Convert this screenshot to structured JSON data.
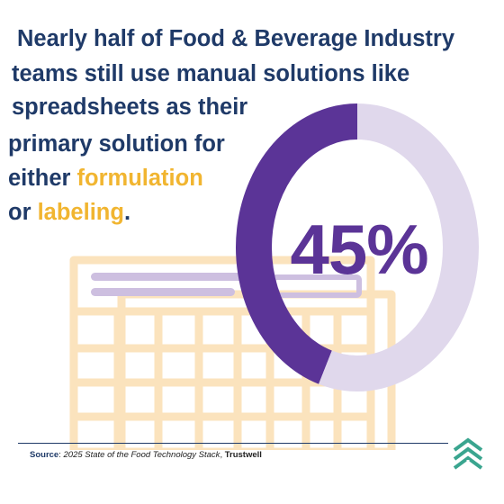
{
  "headline": {
    "line1": "Nearly half of Food & Beverage Industry",
    "line2": "teams still use manual solutions like",
    "line3": "spreadsheets as their",
    "line4": "primary solution for",
    "line5_pre": "either ",
    "line5_accent": "formulation",
    "line6_pre": "or ",
    "line6_accent": "labeling",
    "line6_post": "."
  },
  "chart_data": {
    "type": "pie",
    "values": [
      45,
      55
    ],
    "value_label": "45%",
    "colors": [
      "#5b3497",
      "#e0d8ec"
    ]
  },
  "footer": {
    "source_label": "Source",
    "source_sep": ": ",
    "source_title": "2025 State of the Food Technology Stack",
    "source_comma": ", ",
    "source_org": "Trustwell"
  },
  "colors": {
    "navy": "#1f3a68",
    "accent": "#f1b530",
    "purple": "#5b3497",
    "lavender": "#e0d8ec",
    "sheet_peach": "#fbe3bd",
    "sheet_lilac": "#cdbfe0",
    "logo_teal": "#3aa58f"
  },
  "icons": {
    "background": "spreadsheet-icon",
    "logo": "trustwell-logo-icon"
  }
}
